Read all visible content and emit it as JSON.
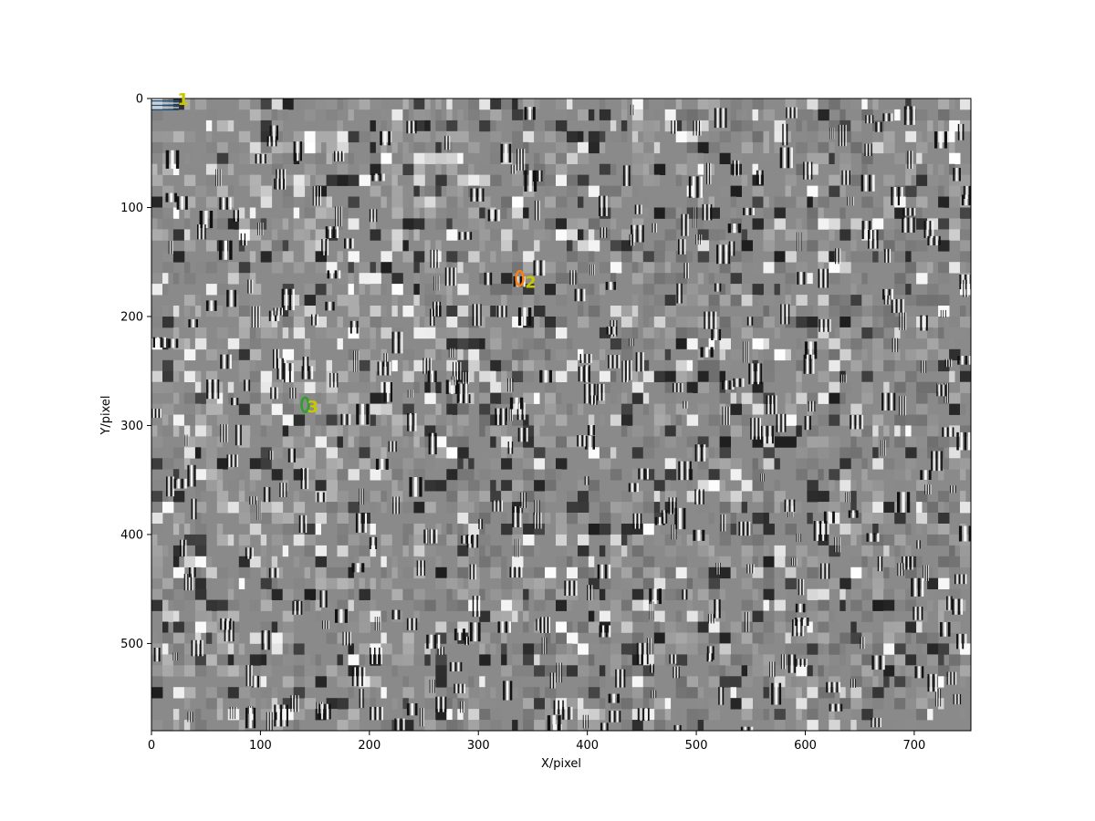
{
  "chart_data": {
    "type": "heatmap",
    "title": "",
    "xlabel": "X/pixel",
    "ylabel": "Y/pixel",
    "xlim": [
      0,
      752
    ],
    "ylim": [
      580,
      0
    ],
    "y_inverted": true,
    "x_ticks": [
      0,
      100,
      200,
      300,
      400,
      500,
      600,
      700
    ],
    "y_ticks": [
      0,
      100,
      200,
      300,
      400,
      500
    ],
    "colormap": "gray",
    "grid": false,
    "background_color": "#8a8a8a",
    "annotations": [
      {
        "label": "1",
        "x": 29,
        "y": 0,
        "color": "#c8c800"
      },
      {
        "label": "2",
        "x": 348,
        "y": 168,
        "color": "#c8c800"
      },
      {
        "label": "3",
        "x": 148,
        "y": 282,
        "color": "#c8c800"
      }
    ],
    "markers": [
      {
        "shape": "circle",
        "x": 338,
        "y": 165,
        "color": "#ff7f0e"
      },
      {
        "shape": "circle",
        "x": 141,
        "y": 281,
        "color": "#2ca02c"
      },
      {
        "shape": "bars",
        "x": 12,
        "y": 4,
        "color": "#1f4e79"
      }
    ]
  }
}
